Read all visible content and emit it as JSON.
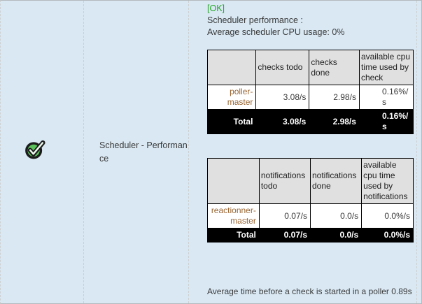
{
  "colors": {
    "panel_background": "#d9e8f3",
    "ok_green": "#28a428",
    "icon_green": "#5bc25b",
    "row_label_brown": "#996633",
    "header_cell_bg": "#e0e0e0",
    "total_row_bg": "#000000",
    "total_row_text": "#ffffff"
  },
  "icon": {
    "name": "ok-check-icon"
  },
  "row_label": "Scheduler - Performance",
  "status": {
    "badge": "[OK]",
    "lines": [
      "Scheduler performance :",
      "Average scheduler CPU usage: 0%"
    ]
  },
  "tables": [
    {
      "name": "checks",
      "headers": [
        "",
        "checks todo",
        "checks done",
        "available cpu time used by check"
      ],
      "rows": [
        {
          "label": "poller-master",
          "values": [
            "3.08/s",
            "2.98/s",
            "0.16%/s"
          ]
        }
      ],
      "total": {
        "label": "Total",
        "values": [
          "3.08/s",
          "2.98/s",
          "0.16%/s"
        ]
      }
    },
    {
      "name": "notifications",
      "headers": [
        "",
        "notifications todo",
        "notifications done",
        "available cpu time used by notifications"
      ],
      "rows": [
        {
          "label": "reactionner-master",
          "values": [
            "0.07/s",
            "0.0/s",
            "0.0%/s"
          ]
        }
      ],
      "total": {
        "label": "Total",
        "values": [
          "0.07/s",
          "0.0/s",
          "0.0%/s"
        ]
      }
    }
  ],
  "footer": "Average time before a check is started in a poller 0.89s"
}
